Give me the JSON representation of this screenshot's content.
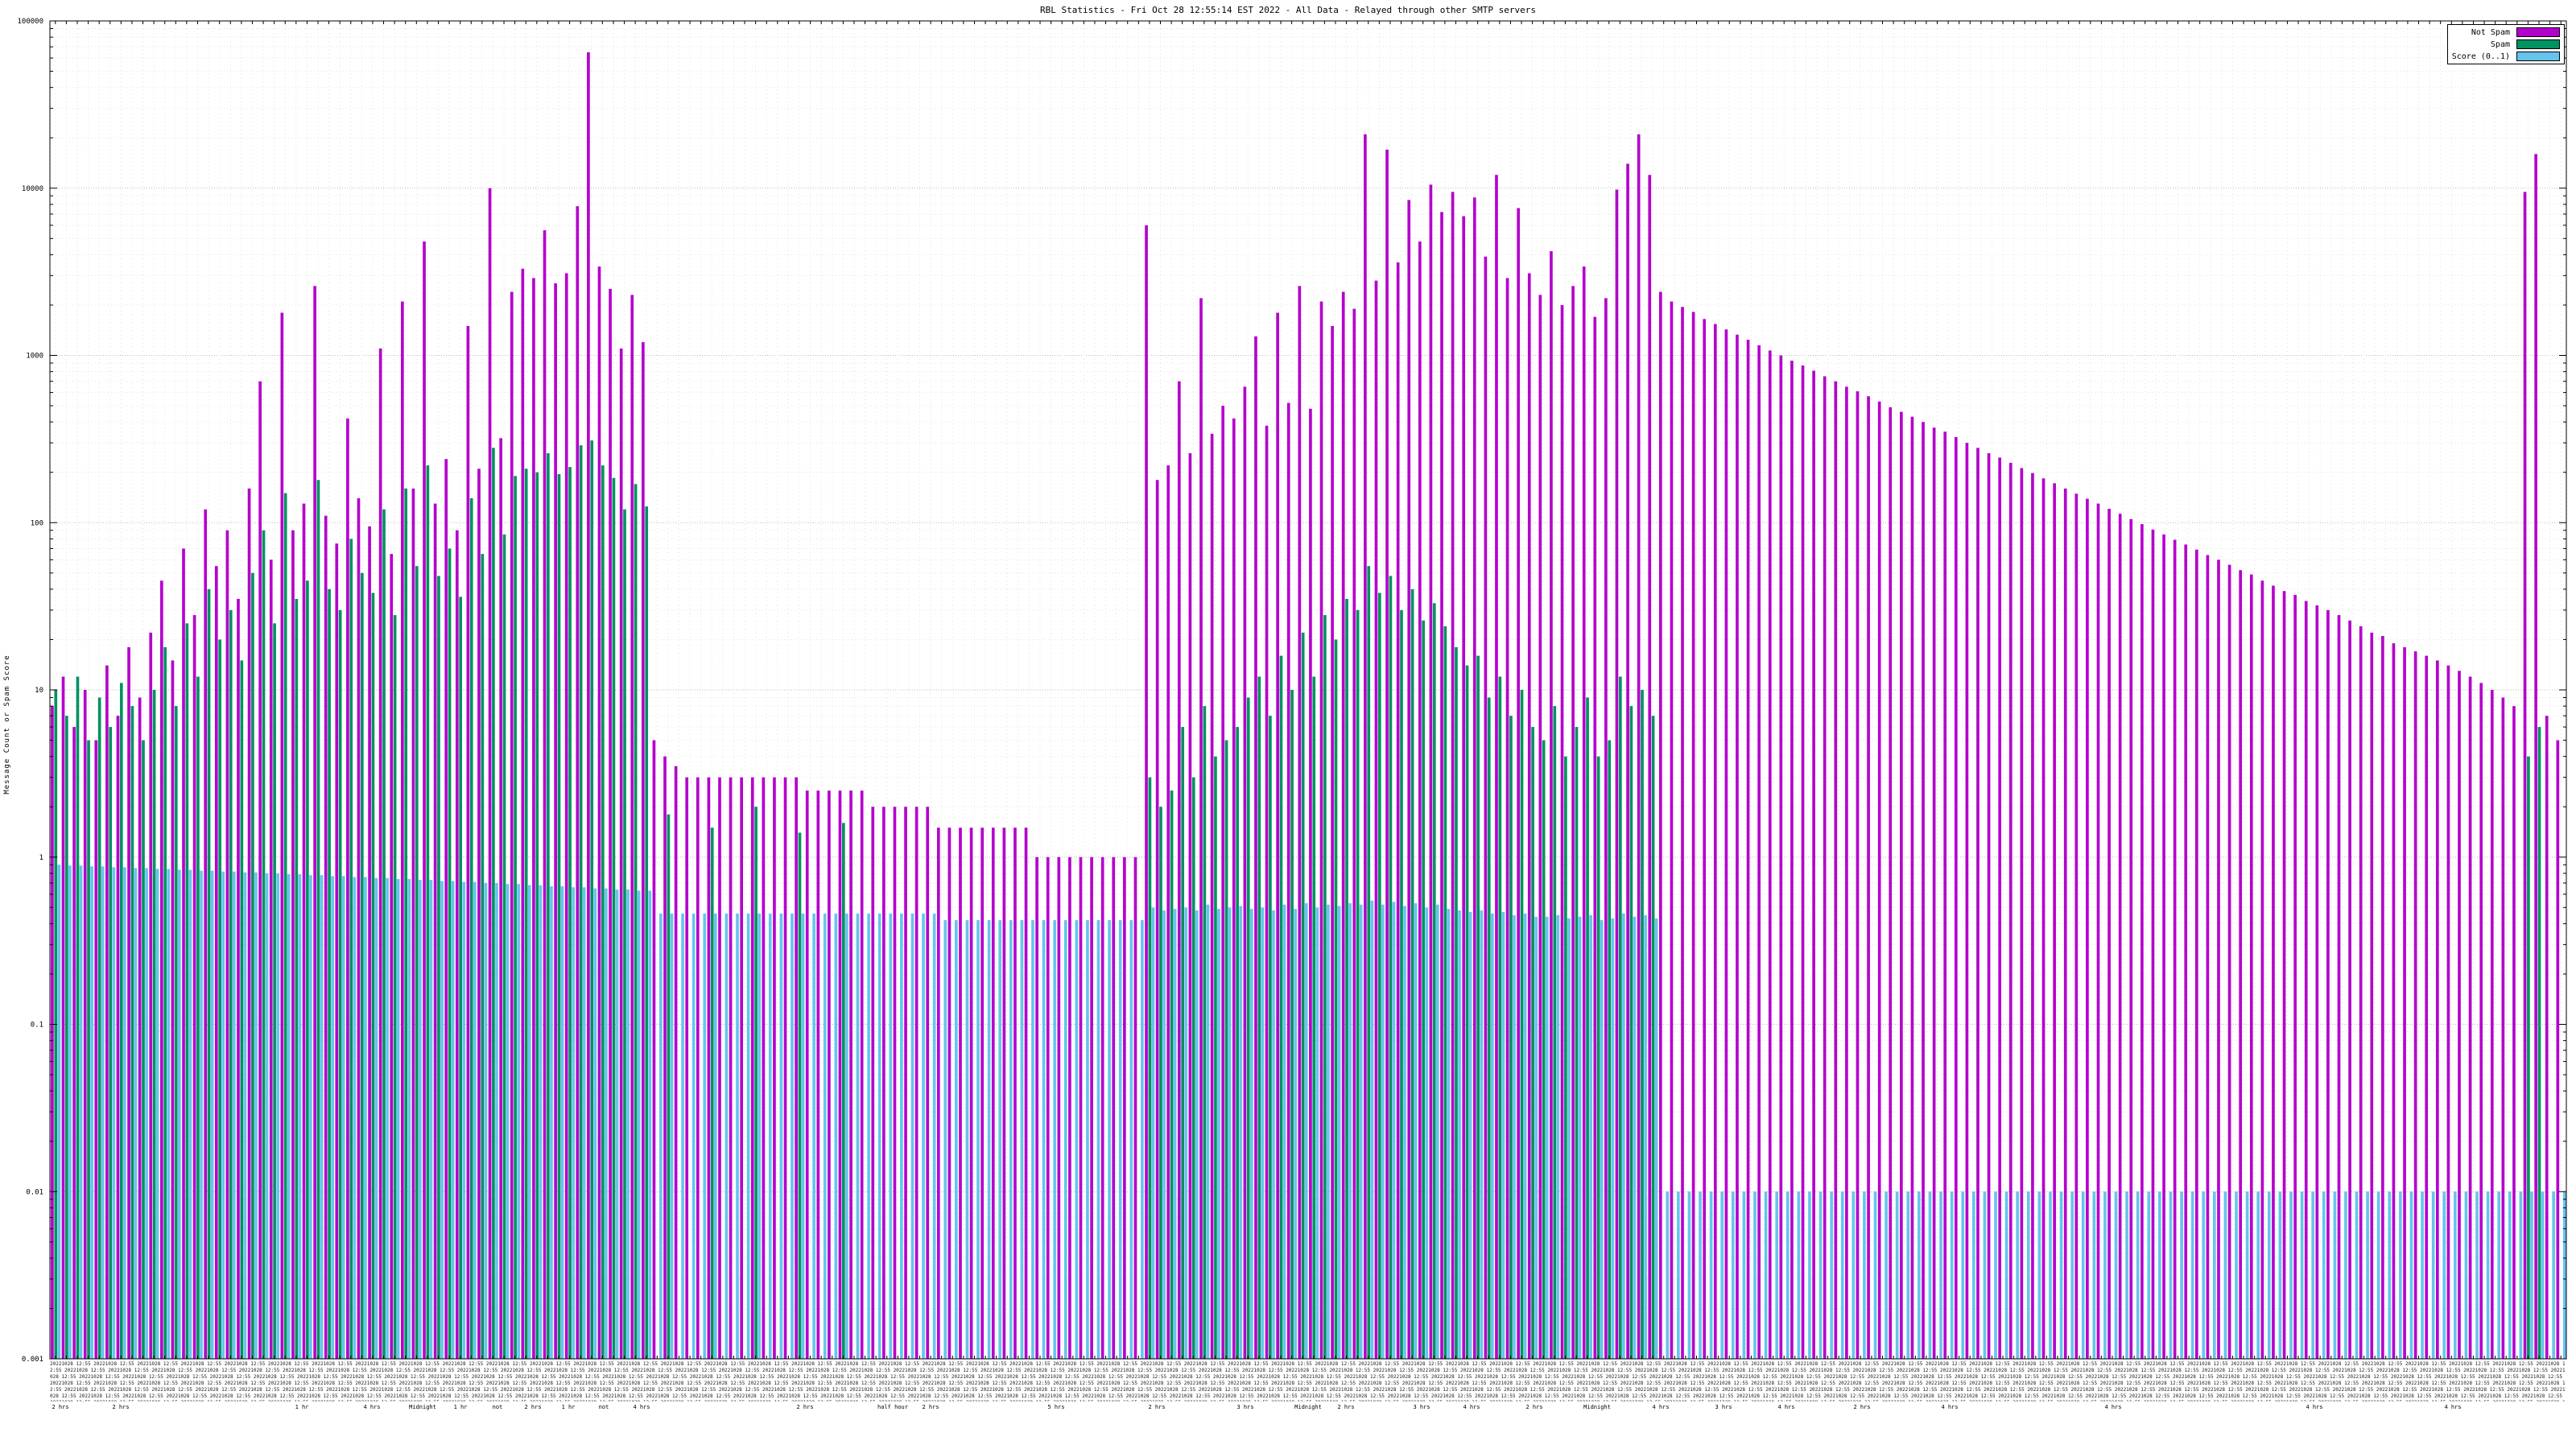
{
  "title": "RBL Statistics - Fri Oct 28 12:55:14 EST 2022 - All Data - Relayed through other SMTP servers",
  "legend": [
    {
      "label": "Not Spam",
      "color": "#b400cc"
    },
    {
      "label": "Spam",
      "color": "#009260"
    },
    {
      "label": "Score (0..1)",
      "color": "#66c4ec"
    }
  ],
  "y_axis": {
    "label": "Message Count or Spam Score",
    "scale": "log",
    "min": 0.001,
    "max": 100000,
    "ticks": [
      "100000",
      "10000",
      "1000",
      "100",
      "10",
      "1",
      "0.1",
      "0.01",
      "0.001"
    ]
  },
  "x_axis": {
    "tick_label_sample": "20221028",
    "tick_label_sample2": "12:55",
    "time_labels": [
      {
        "pos": 0.004,
        "label": "2 hrs"
      },
      {
        "pos": 0.028,
        "label": "2 hrs"
      },
      {
        "pos": 0.1,
        "label": "1 hr"
      },
      {
        "pos": 0.128,
        "label": "4 hrs"
      },
      {
        "pos": 0.148,
        "label": "Midnight"
      },
      {
        "pos": 0.163,
        "label": "1 hr"
      },
      {
        "pos": 0.178,
        "label": "not"
      },
      {
        "pos": 0.192,
        "label": "2 hrs"
      },
      {
        "pos": 0.206,
        "label": "1 hr"
      },
      {
        "pos": 0.22,
        "label": "not"
      },
      {
        "pos": 0.235,
        "label": "4 hrs"
      },
      {
        "pos": 0.3,
        "label": "2 hrs"
      },
      {
        "pos": 0.335,
        "label": "half hour"
      },
      {
        "pos": 0.35,
        "label": "2 hrs"
      },
      {
        "pos": 0.4,
        "label": "5 hrs"
      },
      {
        "pos": 0.44,
        "label": "2 hrs"
      },
      {
        "pos": 0.475,
        "label": "3 hrs"
      },
      {
        "pos": 0.5,
        "label": "Midnight"
      },
      {
        "pos": 0.515,
        "label": "2 hrs"
      },
      {
        "pos": 0.545,
        "label": "3 hrs"
      },
      {
        "pos": 0.565,
        "label": "4 hrs"
      },
      {
        "pos": 0.59,
        "label": "2 hrs"
      },
      {
        "pos": 0.615,
        "label": "Midnight"
      },
      {
        "pos": 0.64,
        "label": "4 hrs"
      },
      {
        "pos": 0.665,
        "label": "3 hrs"
      },
      {
        "pos": 0.69,
        "label": "4 hrs"
      },
      {
        "pos": 0.72,
        "label": "2 hrs"
      },
      {
        "pos": 0.755,
        "label": "4 hrs"
      },
      {
        "pos": 0.82,
        "label": "4 hrs"
      },
      {
        "pos": 0.9,
        "label": "4 hrs"
      },
      {
        "pos": 0.955,
        "label": "4 hrs"
      }
    ]
  },
  "chart_data": {
    "type": "bar",
    "title": "RBL Statistics - Fri Oct 28 12:55:14 EST 2022 - All Data - Relayed through other SMTP servers",
    "xlabel": "",
    "ylabel": "Message Count or Spam Score",
    "y_scale": "log",
    "ylim": [
      0.001,
      100000
    ],
    "grid": true,
    "legend_position": "top-right",
    "series": [
      {
        "name": "Not Spam",
        "color": "#b400cc",
        "values": [
          8,
          12,
          6,
          10,
          5,
          14,
          7,
          18,
          9,
          22,
          45,
          15,
          70,
          28,
          120,
          55,
          90,
          35,
          160,
          700,
          60,
          1800,
          90,
          130,
          2600,
          110,
          75,
          420,
          140,
          95,
          1100,
          65,
          2100,
          160,
          4800,
          130,
          240,
          90,
          1500,
          210,
          10000,
          320,
          2400,
          3300,
          2900,
          5600,
          2700,
          3100,
          7800,
          65000,
          3400,
          2500,
          1100,
          2300,
          1200,
          5,
          4,
          3.5,
          3,
          3,
          3,
          3,
          3,
          3,
          3,
          3,
          3,
          3,
          3,
          2.5,
          2.5,
          2.5,
          2.5,
          2.5,
          2.5,
          2,
          2,
          2,
          2,
          2,
          2,
          1.5,
          1.5,
          1.5,
          1.5,
          1.5,
          1.5,
          1.5,
          1.5,
          1.5,
          1,
          1,
          1,
          1,
          1,
          1,
          1,
          1,
          1,
          1,
          6000,
          180,
          220,
          700,
          260,
          2200,
          340,
          500,
          420,
          650,
          1300,
          380,
          1800,
          520,
          2600,
          480,
          2100,
          1500,
          2400,
          1900,
          21000,
          2800,
          17000,
          3600,
          8500,
          4800,
          10500,
          7200,
          9500,
          6800,
          8800,
          3900,
          12000,
          2900,
          7600,
          3100,
          2300,
          4200,
          2000,
          2600,
          3400,
          1700,
          2200,
          9800,
          14000,
          21000,
          12000,
          2400,
          2100,
          1950,
          1820,
          1650,
          1540,
          1430,
          1330,
          1240,
          1150,
          1070,
          1000,
          930,
          870,
          810,
          750,
          700,
          650,
          610,
          570,
          530,
          490,
          460,
          430,
          400,
          370,
          350,
          325,
          300,
          280,
          260,
          245,
          228,
          212,
          198,
          184,
          172,
          160,
          149,
          139,
          130,
          121,
          113,
          105,
          98,
          91,
          85,
          79,
          74,
          69,
          64,
          60,
          56,
          52,
          49,
          45,
          42,
          39,
          37,
          34,
          32,
          30,
          28,
          26,
          24,
          22,
          21,
          19,
          18,
          17,
          16,
          15,
          14,
          13,
          12,
          11,
          10,
          9,
          8,
          9500,
          16000,
          7,
          5
        ]
      },
      {
        "name": "Spam",
        "color": "#009260",
        "values": [
          10,
          7,
          12,
          5,
          9,
          6,
          11,
          8,
          5,
          10,
          18,
          8,
          25,
          12,
          40,
          20,
          30,
          15,
          50,
          90,
          25,
          150,
          35,
          45,
          180,
          40,
          30,
          80,
          50,
          38,
          120,
          28,
          160,
          55,
          220,
          48,
          70,
          36,
          140,
          65,
          280,
          85,
          190,
          210,
          200,
          260,
          195,
          215,
          290,
          310,
          220,
          185,
          120,
          170,
          125,
          0,
          1.8,
          0,
          0,
          0,
          1.5,
          0,
          0,
          0,
          2,
          0,
          0,
          0,
          1.4,
          0,
          0,
          0,
          1.6,
          0,
          0,
          0,
          0,
          0,
          0,
          0,
          0,
          0,
          0,
          0,
          0,
          0,
          0,
          0,
          0,
          0,
          0,
          0,
          0,
          0,
          0,
          0,
          0,
          0,
          0,
          0,
          3,
          2,
          2.5,
          6,
          3,
          8,
          4,
          5,
          6,
          9,
          12,
          7,
          16,
          10,
          22,
          12,
          28,
          20,
          35,
          30,
          55,
          38,
          48,
          30,
          40,
          26,
          33,
          24,
          18,
          14,
          16,
          9,
          12,
          7,
          10,
          6,
          5,
          8,
          4,
          6,
          9,
          4,
          5,
          12,
          8,
          10,
          7,
          0,
          0,
          0,
          0,
          0,
          0,
          0,
          0,
          0,
          0,
          0,
          0,
          0,
          0,
          0,
          0,
          0,
          0,
          0,
          0,
          0,
          0,
          0,
          0,
          0,
          0,
          0,
          0,
          0,
          0,
          0,
          0,
          0,
          0,
          0,
          0,
          0,
          0,
          0,
          0,
          0,
          0,
          0,
          0,
          0,
          0,
          0,
          0,
          0,
          0,
          0,
          0,
          0,
          0,
          0,
          0,
          0,
          0,
          0,
          0,
          0,
          0,
          0,
          0,
          0,
          0,
          0,
          0,
          0,
          0,
          0,
          0,
          0,
          0,
          0,
          0,
          0,
          0,
          0,
          4,
          6,
          0,
          0
        ]
      },
      {
        "name": "Score (0..1)",
        "color": "#66c4ec",
        "values": [
          0.9,
          0.89,
          0.89,
          0.88,
          0.88,
          0.87,
          0.87,
          0.86,
          0.86,
          0.85,
          0.85,
          0.84,
          0.84,
          0.83,
          0.83,
          0.82,
          0.82,
          0.81,
          0.81,
          0.8,
          0.8,
          0.79,
          0.79,
          0.78,
          0.78,
          0.77,
          0.77,
          0.76,
          0.76,
          0.75,
          0.75,
          0.74,
          0.74,
          0.73,
          0.73,
          0.72,
          0.72,
          0.71,
          0.71,
          0.7,
          0.7,
          0.69,
          0.69,
          0.68,
          0.68,
          0.67,
          0.67,
          0.66,
          0.66,
          0.65,
          0.65,
          0.64,
          0.64,
          0.63,
          0.63,
          0.46,
          0.46,
          0.46,
          0.46,
          0.46,
          0.46,
          0.46,
          0.46,
          0.46,
          0.46,
          0.46,
          0.46,
          0.46,
          0.46,
          0.46,
          0.46,
          0.46,
          0.46,
          0.46,
          0.46,
          0.46,
          0.46,
          0.46,
          0.46,
          0.46,
          0.46,
          0.42,
          0.42,
          0.42,
          0.42,
          0.42,
          0.42,
          0.42,
          0.42,
          0.42,
          0.42,
          0.42,
          0.42,
          0.42,
          0.42,
          0.42,
          0.42,
          0.42,
          0.42,
          0.42,
          0.5,
          0.48,
          0.49,
          0.5,
          0.48,
          0.52,
          0.49,
          0.5,
          0.51,
          0.49,
          0.5,
          0.48,
          0.52,
          0.49,
          0.53,
          0.5,
          0.52,
          0.51,
          0.53,
          0.52,
          0.55,
          0.52,
          0.54,
          0.51,
          0.53,
          0.5,
          0.52,
          0.49,
          0.48,
          0.47,
          0.48,
          0.46,
          0.47,
          0.45,
          0.46,
          0.44,
          0.44,
          0.45,
          0.43,
          0.44,
          0.45,
          0.42,
          0.43,
          0.46,
          0.44,
          0.45,
          0.43,
          0.01,
          0.01,
          0.01,
          0.01,
          0.01,
          0.01,
          0.01,
          0.01,
          0.01,
          0.01,
          0.01,
          0.01,
          0.01,
          0.01,
          0.01,
          0.01,
          0.01,
          0.01,
          0.01,
          0.01,
          0.01,
          0.01,
          0.01,
          0.01,
          0.01,
          0.01,
          0.01,
          0.01,
          0.01,
          0.01,
          0.01,
          0.01,
          0.01,
          0.01,
          0.01,
          0.01,
          0.01,
          0.01,
          0.01,
          0.01,
          0.01,
          0.01,
          0.01,
          0.01,
          0.01,
          0.01,
          0.01,
          0.01,
          0.01,
          0.01,
          0.01,
          0.01,
          0.01,
          0.01,
          0.01,
          0.01,
          0.01,
          0.01,
          0.01,
          0.01,
          0.01,
          0.01,
          0.01,
          0.01,
          0.01,
          0.01,
          0.01,
          0.01,
          0.01,
          0.01,
          0.01,
          0.01,
          0.01,
          0.01,
          0.01,
          0.01,
          0.01,
          0.01,
          0.01,
          0.01,
          0.01,
          0.01,
          0.01
        ]
      }
    ]
  }
}
